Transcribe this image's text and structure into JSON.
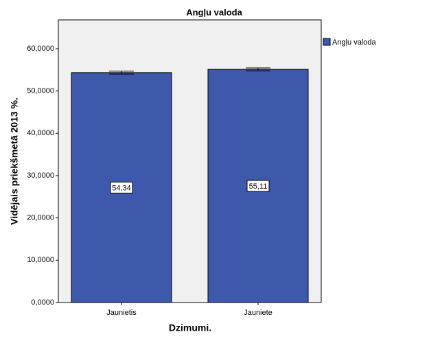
{
  "chart_data": {
    "type": "bar",
    "title": "Angļu valoda",
    "x_label": "Dzimumi.",
    "y_label": "Vidējais priekšmetā 2013 %.",
    "categories": [
      "Jaunietis",
      "Jauniete"
    ],
    "series": [
      {
        "name": "Angļu valoda",
        "color": "#3e58ac",
        "values": [
          54.34,
          55.11
        ],
        "value_labels": [
          "54,34",
          "55,11"
        ],
        "errors": [
          0.35,
          0.35
        ]
      }
    ],
    "ylim": [
      0,
      66.8
    ],
    "yticks": [
      {
        "value": 0,
        "label": "0,0000"
      },
      {
        "value": 10,
        "label": "10,0000"
      },
      {
        "value": 20,
        "label": "20,0000"
      },
      {
        "value": 30,
        "label": "30,0000"
      },
      {
        "value": 40,
        "label": "40,0000"
      },
      {
        "value": 50,
        "label": "50,0000"
      },
      {
        "value": 60,
        "label": "60,0000"
      }
    ],
    "grid": false,
    "legend": "right",
    "plot_background": "#f0f0f0"
  }
}
